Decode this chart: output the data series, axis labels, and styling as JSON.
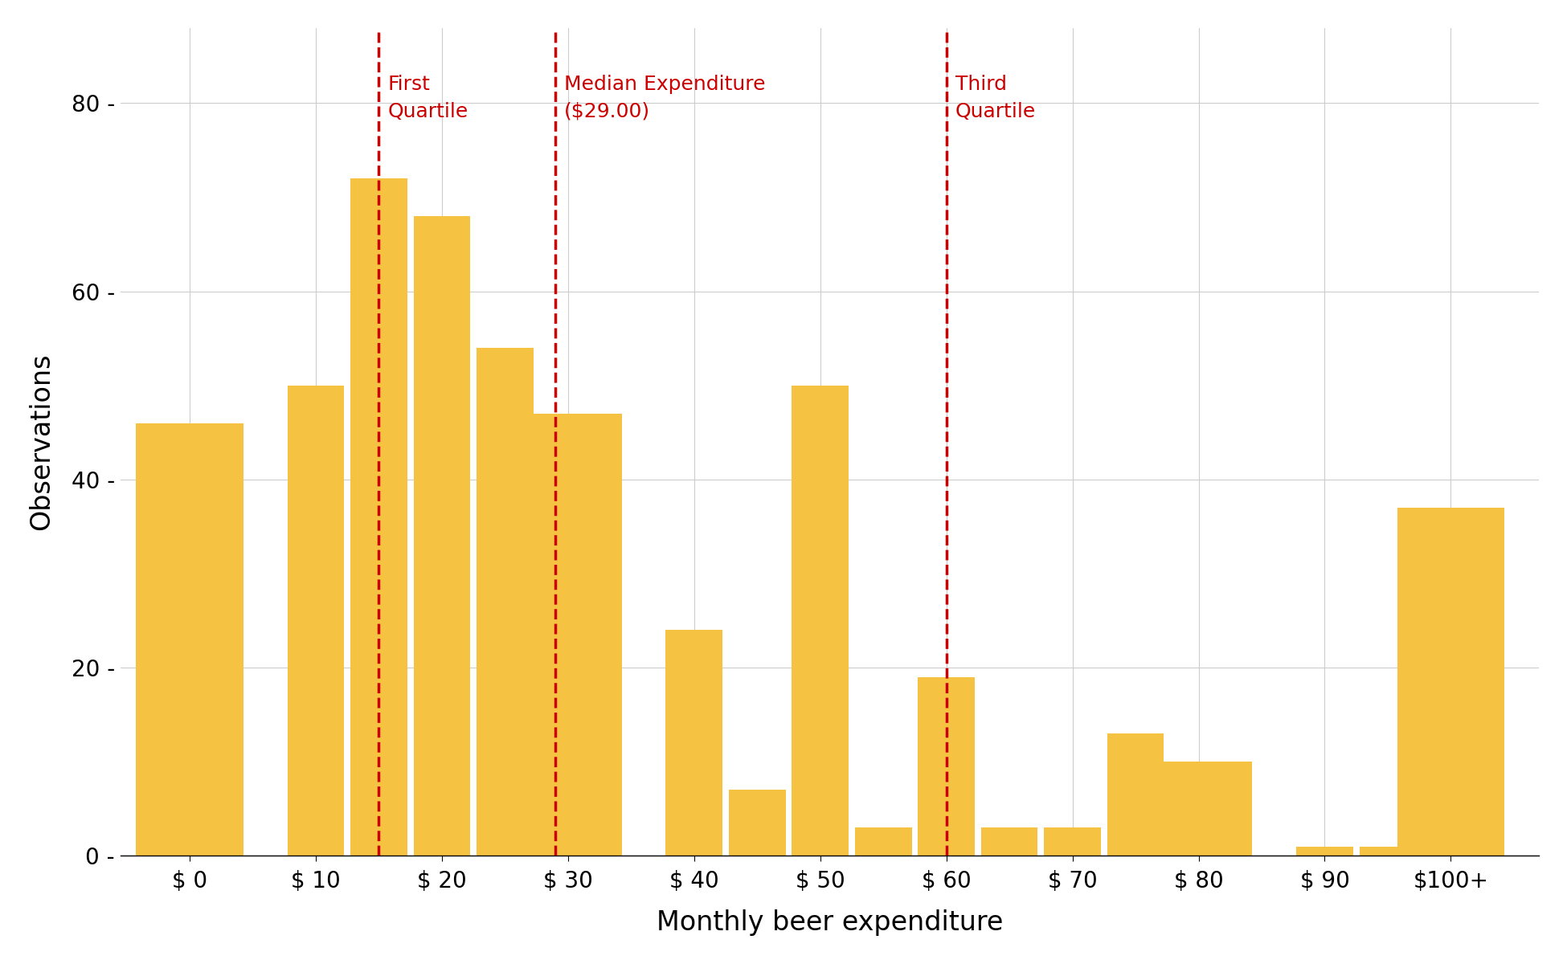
{
  "bar_positions": [
    0,
    1,
    1.5,
    2,
    2.5,
    3,
    4,
    4.5,
    5,
    5.5,
    6,
    6.5,
    7,
    7.5,
    8,
    9,
    9.5,
    10
  ],
  "bar_heights": [
    46,
    50,
    72,
    68,
    54,
    47,
    24,
    7,
    50,
    3,
    19,
    3,
    3,
    13,
    10,
    1,
    1,
    37
  ],
  "bar_widths": [
    0.85,
    0.45,
    0.45,
    0.45,
    0.45,
    0.85,
    0.45,
    0.45,
    0.45,
    0.45,
    0.45,
    0.45,
    0.45,
    0.45,
    0.85,
    0.45,
    0.45,
    0.85
  ],
  "x_tick_positions": [
    0,
    1,
    2,
    3,
    4,
    5,
    6,
    7,
    8,
    9,
    10
  ],
  "x_tick_labels": [
    "$ 0",
    "$ 10",
    "$ 20",
    "$ 30",
    "$ 40",
    "$ 50",
    "$ 60",
    "$ 70",
    "$ 80",
    "$ 90",
    "$100+"
  ],
  "bar_color": "#F5C242",
  "background_color": "#ffffff",
  "xlabel": "Monthly beer expenditure",
  "ylabel": "Observations",
  "ylim": [
    0,
    88
  ],
  "yticks": [
    0,
    20,
    40,
    60,
    80
  ],
  "grid_color": "#cccccc",
  "vline_color": "#cc0000",
  "vline_x_q1": 1.5,
  "vline_x_median": 2.9,
  "vline_x_q3": 6.0,
  "annotation_q1": "First\nQuartile",
  "annotation_median": "Median Expenditure\n($29.00)",
  "annotation_q3": "Third\nQuartile",
  "annotation_color": "#cc0000",
  "annotation_fontsize": 18,
  "xlim_left": -0.55,
  "xlim_right": 10.7
}
